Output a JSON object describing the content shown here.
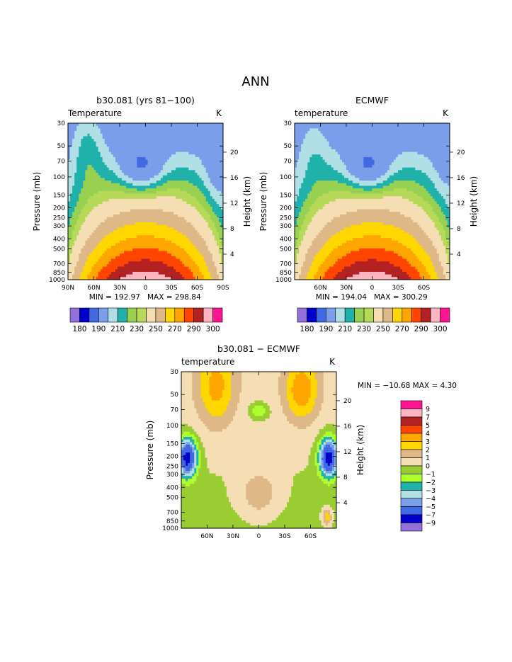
{
  "page": {
    "title": "ANN"
  },
  "palette_abs": [
    "#9370db",
    "#0000cd",
    "#4169e1",
    "#7b9eea",
    "#b0e0e6",
    "#20b2aa",
    "#98d152",
    "#b6d959",
    "#f5deb3",
    "#deb887",
    "#ffd700",
    "#ffa500",
    "#ff4500",
    "#b22222",
    "#ffb6c1",
    "#ff1493"
  ],
  "palette_diff": [
    "#9370db",
    "#0000cd",
    "#4169e1",
    "#7b9eea",
    "#b0e0e6",
    "#20b2aa",
    "#adff2f",
    "#9acd32",
    "#f5deb3",
    "#deb887",
    "#ffd700",
    "#ffa500",
    "#ff4500",
    "#b22222",
    "#ffb6c1",
    "#ff1493"
  ],
  "chart_data": [
    {
      "type": "heatmap",
      "title": "b30.081 (yrs 81−100)",
      "left_label": "Temperature",
      "units": "K",
      "ylabel": "Pressure (mb)",
      "ylabel_right": "Height (km)",
      "x_ticks": [
        "90N",
        "60N",
        "30N",
        "0",
        "30S",
        "60S",
        "90S"
      ],
      "y_ticks": [
        "30",
        "50",
        "70",
        "100",
        "150",
        "200",
        "250",
        "300",
        "400",
        "500",
        "700",
        "850",
        "1000"
      ],
      "y_right_ticks": [
        "20",
        "16",
        "12",
        "8",
        "4"
      ],
      "min_label": "MIN = 192.97",
      "max_label": "MAX = 298.84",
      "colorbar_labels": [
        "180",
        "190",
        "210",
        "230",
        "250",
        "270",
        "290",
        "300"
      ],
      "min": 192.97,
      "max": 298.84
    },
    {
      "type": "heatmap",
      "title": "ECMWF",
      "left_label": "temperature",
      "units": "K",
      "ylabel": "Pressure (mb)",
      "ylabel_right": "Height (km)",
      "x_ticks": [
        "60N",
        "30N",
        "0",
        "30S",
        "60S"
      ],
      "y_ticks": [
        "30",
        "50",
        "70",
        "100",
        "150",
        "200",
        "250",
        "300",
        "400",
        "500",
        "700",
        "850",
        "1000"
      ],
      "y_right_ticks": [
        "20",
        "16",
        "12",
        "8",
        "4"
      ],
      "min_label": "MIN = 194.04",
      "max_label": "MAX = 300.29",
      "colorbar_labels": [
        "180",
        "190",
        "210",
        "230",
        "250",
        "270",
        "290",
        "300"
      ],
      "min": 194.04,
      "max": 300.29
    },
    {
      "type": "heatmap",
      "title": "b30.081 − ECMWF",
      "left_label": "temperature",
      "units": "K",
      "ylabel": "Pressure (mb)",
      "ylabel_right": "Height (km)",
      "x_ticks": [
        "60N",
        "30N",
        "0",
        "30S",
        "60S"
      ],
      "y_ticks": [
        "30",
        "50",
        "70",
        "100",
        "150",
        "200",
        "250",
        "300",
        "400",
        "500",
        "700",
        "850",
        "1000"
      ],
      "y_right_ticks": [
        "20",
        "16",
        "12",
        "8",
        "4"
      ],
      "minmax_label": "MIN = −10.68   MAX =    4.30",
      "min": -10.68,
      "max": 4.3,
      "colorbar_labels": [
        "9",
        "7",
        "5",
        "4",
        "3",
        "2",
        "1",
        "0",
        "−1",
        "−2",
        "−3",
        "−4",
        "−5",
        "−7",
        "−9"
      ]
    }
  ]
}
